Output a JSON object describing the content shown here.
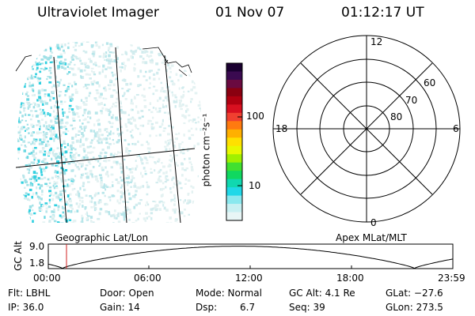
{
  "header": {
    "instrument": "Ultraviolet Imager",
    "date": "01 Nov 07",
    "time": "01:12:17 UT"
  },
  "colorbar": {
    "label": "photon cm⁻²s⁻¹",
    "ticks": [
      "100",
      "10"
    ],
    "colors": [
      "#1a0030",
      "#3a0a50",
      "#6a0a40",
      "#8a0010",
      "#b00010",
      "#d81020",
      "#f04030",
      "#ff7a10",
      "#ffb000",
      "#ffe000",
      "#e8f800",
      "#a0f000",
      "#40e030",
      "#10d860",
      "#10d8b0",
      "#20d8e8",
      "#8ae8ee",
      "#c8f0f2",
      "#e8f6f6"
    ]
  },
  "maps": {
    "left_label": "Geographic Lat/Lon",
    "right_label": "Apex MLat/MLT"
  },
  "polar": {
    "mlt_labels": {
      "top": "12",
      "left": "18",
      "right": "6",
      "bottom": "0"
    },
    "lat_labels": [
      "60",
      "70",
      "80"
    ]
  },
  "altitude_plot": {
    "ylabel": "GC Alt",
    "ytick_top": "9.0",
    "ytick_bottom": "1.8",
    "xticks": [
      "00:00",
      "06:00",
      "12:00",
      "18:00",
      "23:59"
    ],
    "marker_color": "#d02020"
  },
  "info": {
    "flt": "Flt: LBHL",
    "ip": "IP: 36.0",
    "door": "Door: Open",
    "gain": "Gain: 14",
    "mode": "Mode: Normal",
    "dsp_label": "Dsp:",
    "dsp_value": "6.7",
    "gc_alt": "GC Alt: 4.1 Re",
    "seq": "Seq: 39",
    "glat": "GLat: −27.6",
    "glon": "GLon: 273.5"
  }
}
